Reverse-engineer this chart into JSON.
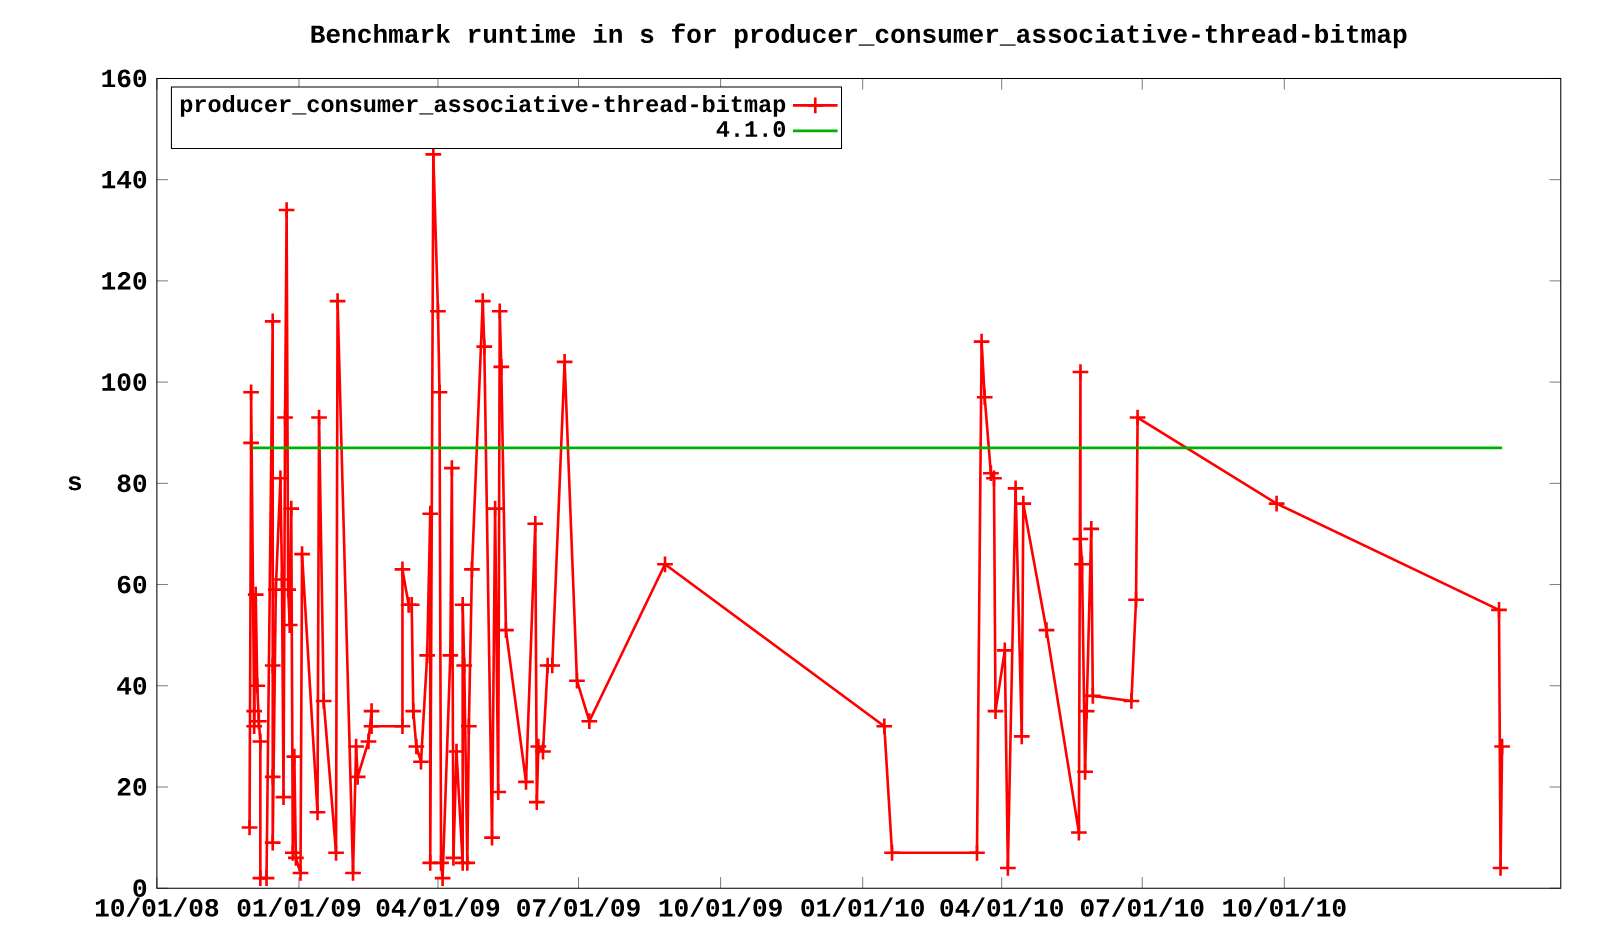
{
  "chart_data": {
    "type": "line",
    "title": "Benchmark runtime in s for producer_consumer_associative-thread-bitmap",
    "ylabel": "s",
    "xlim": [
      "2008-10-01",
      "2011-03-29"
    ],
    "ylim": [
      0,
      160
    ],
    "xticks": [
      {
        "value": "2008-10-01",
        "label": "10/01/08"
      },
      {
        "value": "2009-01-01",
        "label": "01/01/09"
      },
      {
        "value": "2009-04-01",
        "label": "04/01/09"
      },
      {
        "value": "2009-07-01",
        "label": "07/01/09"
      },
      {
        "value": "2009-10-01",
        "label": "10/01/09"
      },
      {
        "value": "2010-01-01",
        "label": "01/01/10"
      },
      {
        "value": "2010-04-01",
        "label": "04/01/10"
      },
      {
        "value": "2010-07-01",
        "label": "07/01/10"
      },
      {
        "value": "2010-10-01",
        "label": "10/01/10"
      }
    ],
    "yticks": [
      0,
      20,
      40,
      60,
      80,
      100,
      120,
      140,
      160
    ],
    "legend": "top left",
    "line_style": "solid",
    "series": [
      {
        "name": "producer_consumer_associative-thread-bitmap",
        "color": "#ff0000",
        "marker": "cross",
        "x": [
          "2008-11-30",
          "2008-12-01",
          "2008-12-01",
          "2008-12-03",
          "2008-12-03",
          "2008-12-04",
          "2008-12-05",
          "2008-12-06",
          "2008-12-07",
          "2008-12-07",
          "2008-12-11",
          "2008-12-15",
          "2008-12-15",
          "2008-12-15",
          "2008-12-15",
          "2008-12-17",
          "2008-12-20",
          "2008-12-21",
          "2008-12-22",
          "2008-12-23",
          "2008-12-24",
          "2008-12-25",
          "2008-12-26",
          "2008-12-27",
          "2008-12-28",
          "2008-12-29",
          "2008-12-30",
          "2009-01-02",
          "2009-01-03",
          "2009-01-13",
          "2009-01-14",
          "2009-01-17",
          "2009-01-25",
          "2009-01-26",
          "2009-02-05",
          "2009-02-07",
          "2009-02-08",
          "2009-02-15",
          "2009-02-17",
          "2009-02-17",
          "2009-03-09",
          "2009-03-09",
          "2009-03-13",
          "2009-03-15",
          "2009-03-16",
          "2009-03-18",
          "2009-03-21",
          "2009-03-25",
          "2009-03-27",
          "2009-03-27",
          "2009-03-29",
          "2009-04-01",
          "2009-04-02",
          "2009-04-03",
          "2009-04-04",
          "2009-04-09",
          "2009-04-10",
          "2009-04-11",
          "2009-04-13",
          "2009-04-17",
          "2009-04-17",
          "2009-04-18",
          "2009-04-20",
          "2009-04-21",
          "2009-04-23",
          "2009-04-30",
          "2009-05-01",
          "2009-05-06",
          "2009-05-08",
          "2009-05-10",
          "2009-05-11",
          "2009-05-12",
          "2009-05-15",
          "2009-05-28",
          "2009-06-03",
          "2009-06-04",
          "2009-06-05",
          "2009-06-08",
          "2009-06-11",
          "2009-06-14",
          "2009-06-22",
          "2009-06-30",
          "2009-07-08",
          "2009-08-26",
          "2010-01-15",
          "2010-01-20",
          "2010-03-16",
          "2010-03-19",
          "2010-03-21",
          "2010-03-25",
          "2010-03-27",
          "2010-03-28",
          "2010-04-03",
          "2010-04-05",
          "2010-04-10",
          "2010-04-14",
          "2010-04-15",
          "2010-04-30",
          "2010-05-21",
          "2010-05-22",
          "2010-05-22",
          "2010-05-23",
          "2010-05-25",
          "2010-05-26",
          "2010-05-29",
          "2010-05-30",
          "2010-06-24",
          "2010-06-27",
          "2010-06-28",
          "2010-09-26",
          "2011-02-17",
          "2011-02-18",
          "2011-02-19"
        ],
        "values": [
          12,
          88,
          98,
          35,
          32,
          58,
          40,
          33,
          29,
          2,
          2,
          112,
          22,
          44,
          9,
          59,
          81,
          61,
          18,
          93,
          134,
          59,
          52,
          75,
          7,
          26,
          6,
          3,
          66,
          15,
          93,
          37,
          7,
          116,
          3,
          28,
          22,
          29,
          35,
          32,
          32,
          63,
          56,
          56,
          35,
          28,
          25,
          46,
          74,
          5,
          145,
          114,
          98,
          5,
          2,
          46,
          83,
          6,
          27,
          5,
          56,
          44,
          5,
          32,
          63,
          116,
          107,
          10,
          75,
          19,
          114,
          103,
          51,
          21,
          72,
          17,
          28,
          27,
          44,
          44,
          104,
          41,
          33,
          64,
          32,
          7,
          7,
          108,
          97,
          82,
          81,
          35,
          47,
          4,
          79,
          30,
          76,
          51,
          11,
          102,
          69,
          64,
          23,
          35,
          71,
          38,
          37,
          57,
          93,
          76,
          55,
          4,
          28
        ]
      },
      {
        "name": "4.1.0",
        "color": "#00b000",
        "marker": "none",
        "x": [
          "2008-12-01",
          "2011-02-19"
        ],
        "values": [
          87,
          87
        ]
      }
    ]
  }
}
